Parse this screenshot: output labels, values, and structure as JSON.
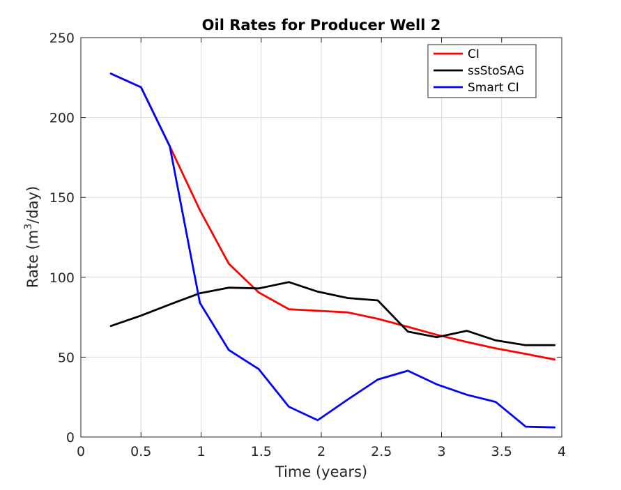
{
  "chart_data": {
    "type": "line",
    "title": "Oil Rates for Producer Well 2",
    "xlabel": "Time (years)",
    "ylabel_prefix": "Rate (m",
    "ylabel_sup": "3",
    "ylabel_suffix": "/day)",
    "xlim": [
      0,
      4
    ],
    "ylim": [
      0,
      250
    ],
    "xticks": [
      0,
      0.5,
      1,
      1.5,
      2,
      2.5,
      3,
      3.5,
      4
    ],
    "yticks": [
      0,
      50,
      100,
      150,
      200,
      250
    ],
    "grid": true,
    "legend_position": "top-right",
    "x": [
      0.25,
      0.5,
      0.74,
      0.99,
      1.23,
      1.48,
      1.73,
      1.97,
      2.22,
      2.47,
      2.72,
      2.96,
      3.21,
      3.45,
      3.7,
      3.94
    ],
    "series": [
      {
        "name": "CI",
        "color": "#ff0000",
        "values": [
          227.5,
          219,
          182,
          142,
          108.5,
          90.5,
          80,
          79,
          78,
          74,
          69,
          64,
          59.5,
          55.5,
          52,
          48.5
        ]
      },
      {
        "name": "ssStoSAG",
        "color": "#000000",
        "values": [
          69.5,
          76,
          83,
          90,
          93.5,
          93,
          97,
          91,
          87,
          85.5,
          66,
          62.5,
          66.5,
          60.5,
          57.5,
          57.5
        ]
      },
      {
        "name": "Smart CI",
        "color": "#0000ff",
        "values": [
          227.5,
          219,
          182,
          84,
          54.5,
          42.5,
          19,
          10.5,
          23.5,
          36,
          41.5,
          33,
          26.5,
          22,
          6.5,
          6
        ]
      }
    ]
  }
}
